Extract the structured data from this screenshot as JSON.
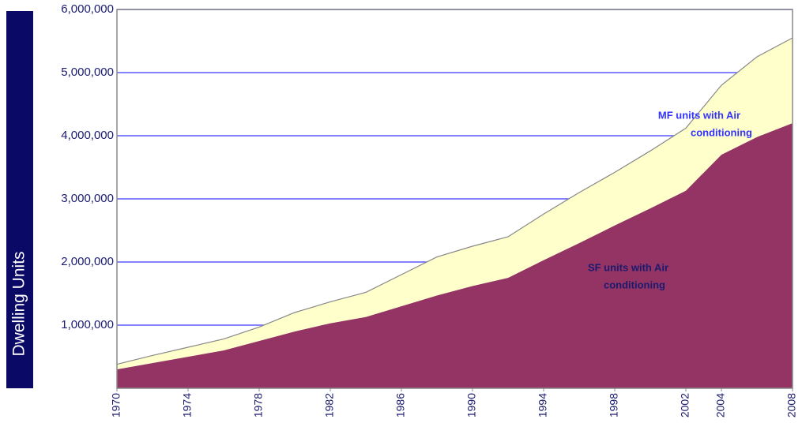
{
  "chart_data": {
    "type": "stacked_area",
    "y_axis_label": "Dwelling Units",
    "x": [
      1970,
      1972,
      1974,
      1976,
      1978,
      1980,
      1982,
      1984,
      1986,
      1988,
      1990,
      1992,
      1994,
      1996,
      1998,
      2000,
      2002,
      2004,
      2006,
      2008
    ],
    "series": [
      {
        "label": [
          "SF units with Air",
          "conditioning"
        ],
        "color": "#943464",
        "label_color": "#1a1a6e",
        "values": [
          300000,
          400000,
          500000,
          600000,
          750000,
          900000,
          1030000,
          1130000,
          1300000,
          1470000,
          1620000,
          1750000,
          2030000,
          2300000,
          2580000,
          2850000,
          3130000,
          3700000,
          3980000,
          4200000
        ]
      },
      {
        "label": [
          "MF units with Air",
          "conditioning"
        ],
        "color": "#ffffcc",
        "label_color": "#3333ff",
        "values": [
          80000,
          120000,
          150000,
          180000,
          220000,
          300000,
          340000,
          390000,
          500000,
          610000,
          630000,
          650000,
          730000,
          800000,
          840000,
          910000,
          990000,
          1100000,
          1270000,
          1350000
        ]
      }
    ],
    "xlim": [
      1970,
      2008
    ],
    "xticks": [
      1970,
      1974,
      1978,
      1982,
      1986,
      1990,
      1994,
      1998,
      2002,
      2004,
      2008
    ],
    "ylim": [
      0,
      6000000
    ],
    "yticks": [
      {
        "value": 1000000,
        "label": "1,000,000"
      },
      {
        "value": 2000000,
        "label": "2,000,000"
      },
      {
        "value": 3000000,
        "label": "3,000,000"
      },
      {
        "value": 4000000,
        "label": "4,000,000"
      },
      {
        "value": 5000000,
        "label": "5,000,000"
      },
      {
        "value": 6000000,
        "label": "6,000,000"
      }
    ],
    "grid": true
  }
}
